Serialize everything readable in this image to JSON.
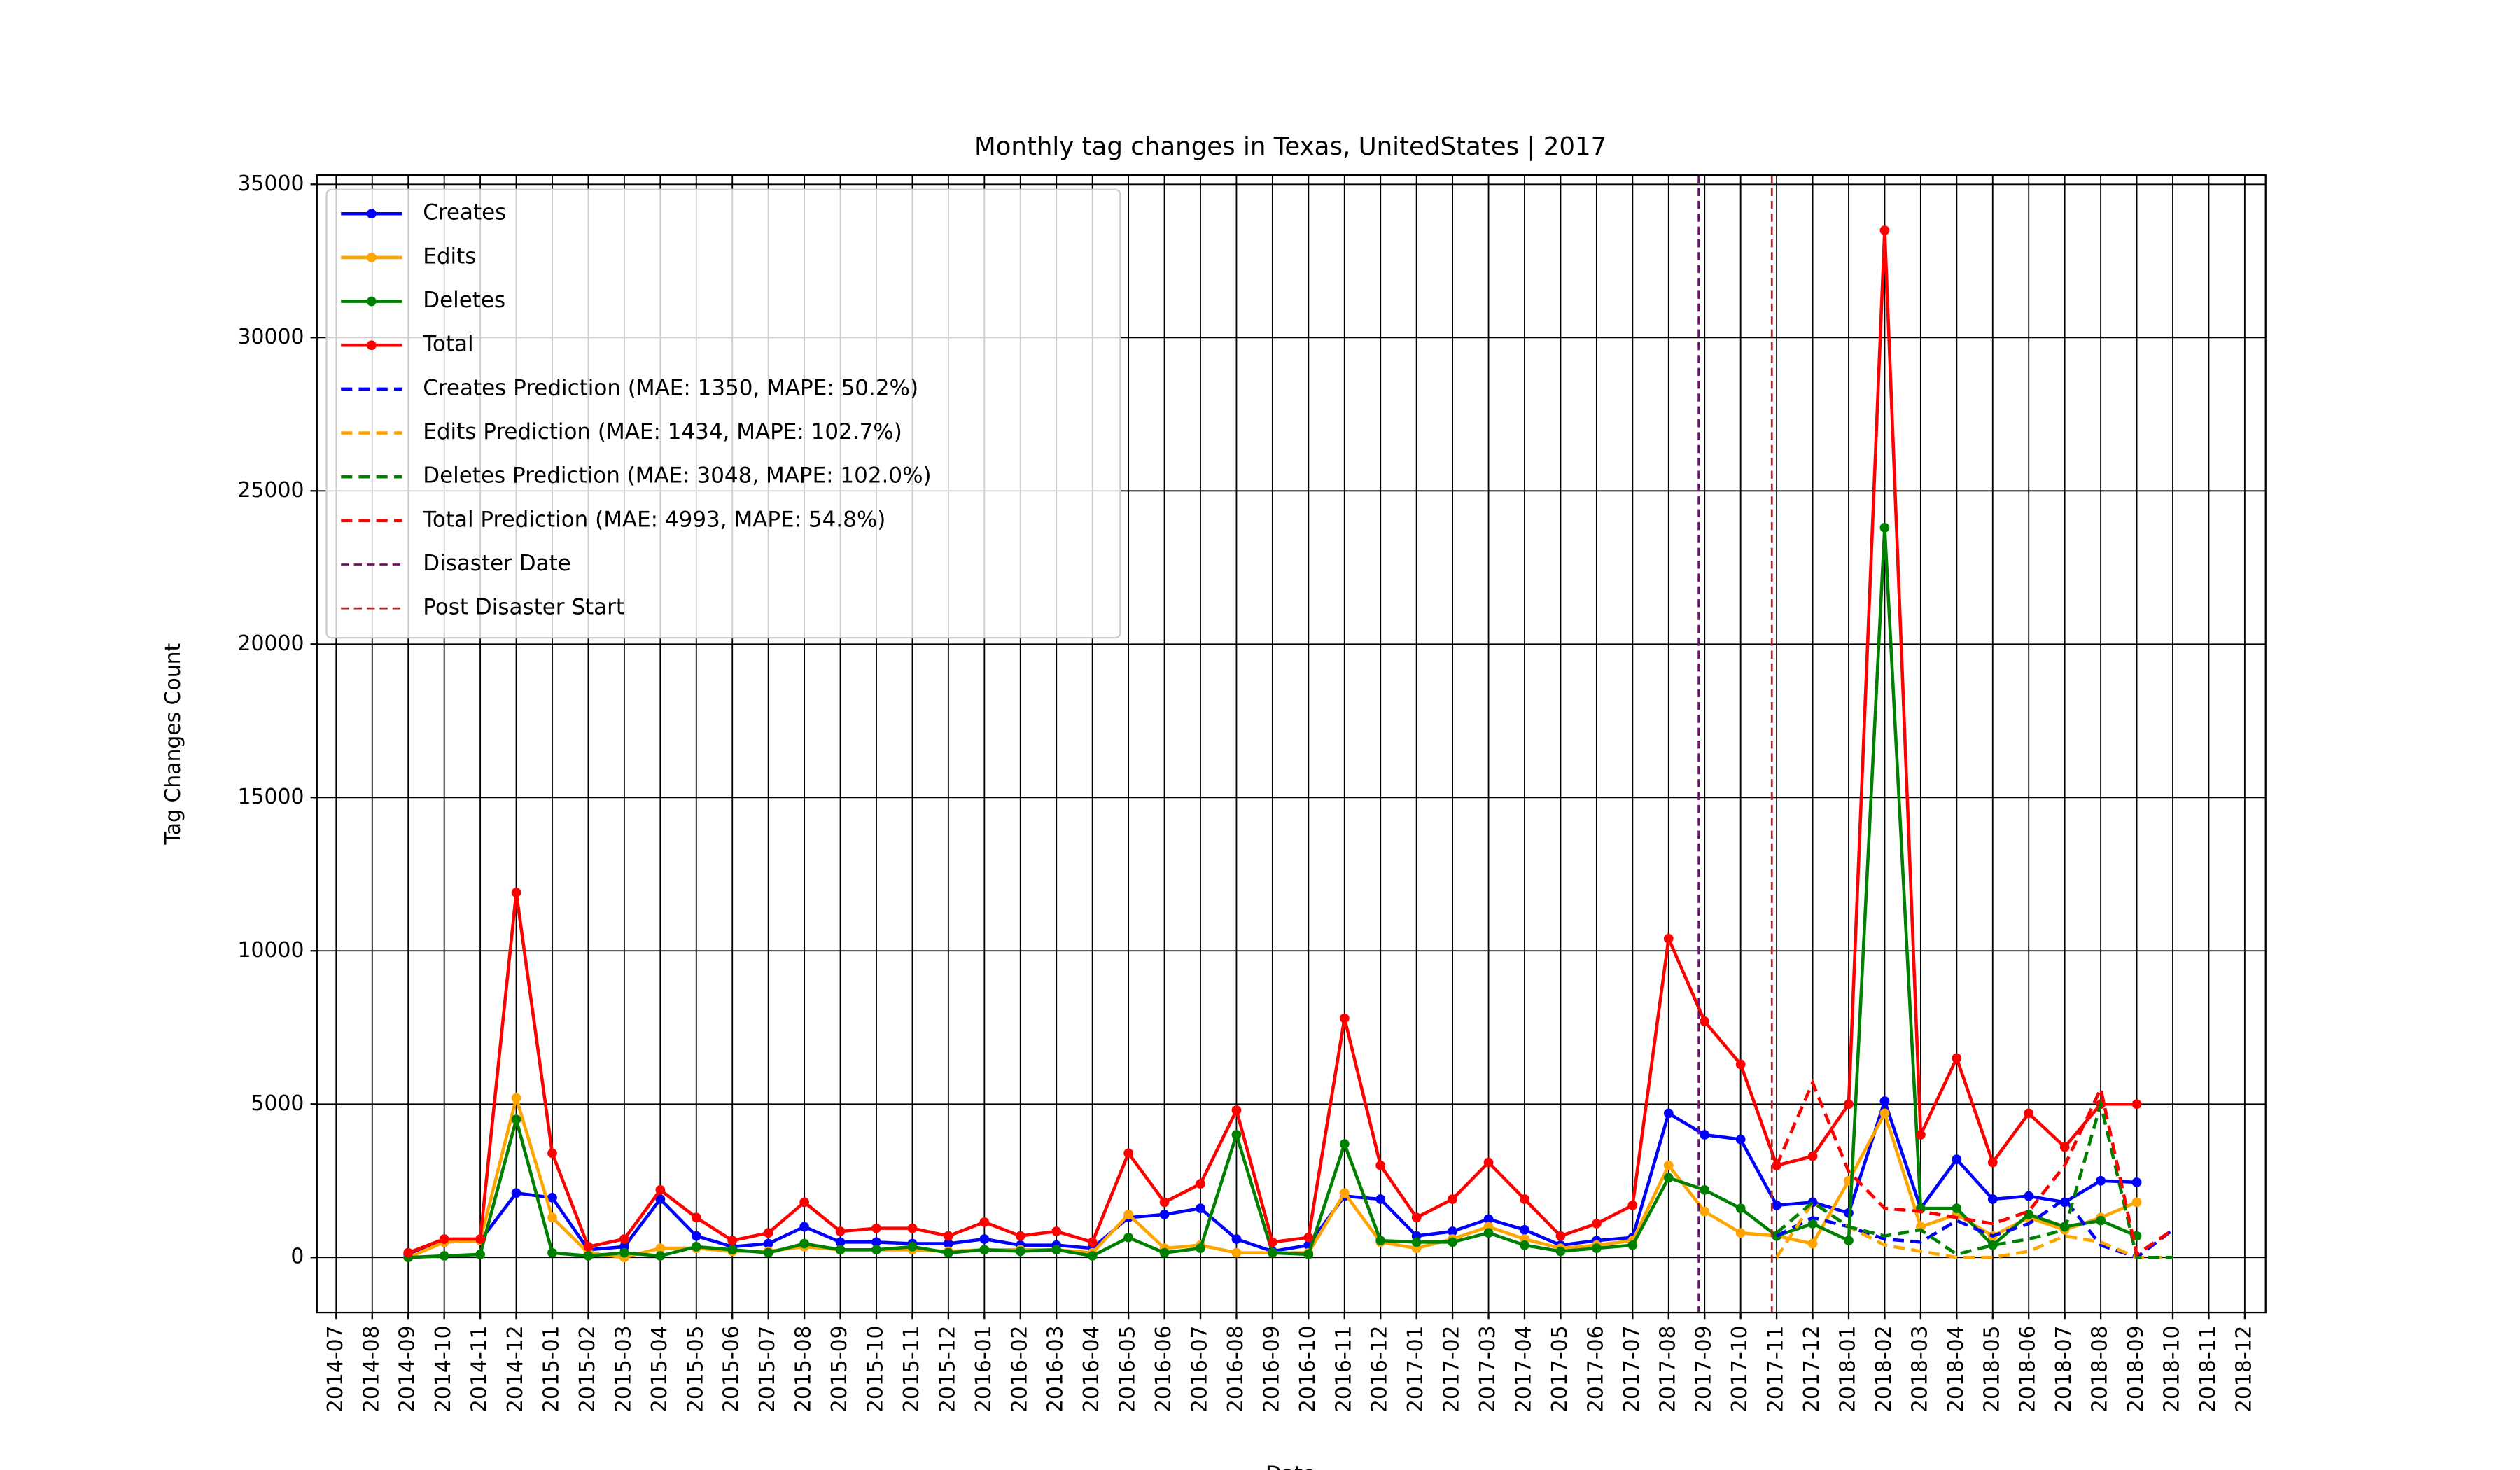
{
  "chart_data": {
    "type": "line",
    "title": "Monthly tag changes in Texas, UnitedStates | 2017",
    "x_label": "Date",
    "y_label": "Tag Changes Count",
    "grid": true,
    "legend": "upper left",
    "ylim": [
      -1800,
      35300
    ],
    "yticks": [
      0,
      5000,
      10000,
      15000,
      20000,
      25000,
      30000,
      35000
    ],
    "xticks": [
      "2014-07",
      "2014-08",
      "2014-09",
      "2014-10",
      "2014-11",
      "2014-12",
      "2015-01",
      "2015-02",
      "2015-03",
      "2015-04",
      "2015-05",
      "2015-06",
      "2015-07",
      "2015-08",
      "2015-09",
      "2015-10",
      "2015-11",
      "2015-12",
      "2016-01",
      "2016-02",
      "2016-03",
      "2016-04",
      "2016-05",
      "2016-06",
      "2016-07",
      "2016-08",
      "2016-09",
      "2016-10",
      "2016-11",
      "2016-12",
      "2017-01",
      "2017-02",
      "2017-03",
      "2017-04",
      "2017-05",
      "2017-06",
      "2017-07",
      "2017-08",
      "2017-09",
      "2017-10",
      "2017-11",
      "2017-12",
      "2018-01",
      "2018-02",
      "2018-03",
      "2018-04",
      "2018-05",
      "2018-06",
      "2018-07",
      "2018-08",
      "2018-09",
      "2018-10",
      "2018-11",
      "2018-12"
    ],
    "x": [
      "2014-09",
      "2014-10",
      "2014-11",
      "2014-12",
      "2015-01",
      "2015-02",
      "2015-03",
      "2015-04",
      "2015-05",
      "2015-06",
      "2015-07",
      "2015-08",
      "2015-09",
      "2015-10",
      "2015-11",
      "2015-12",
      "2016-01",
      "2016-02",
      "2016-03",
      "2016-04",
      "2016-05",
      "2016-06",
      "2016-07",
      "2016-08",
      "2016-09",
      "2016-10",
      "2016-11",
      "2016-12",
      "2017-01",
      "2017-02",
      "2017-03",
      "2017-04",
      "2017-05",
      "2017-06",
      "2017-07",
      "2017-08",
      "2017-09",
      "2017-10",
      "2017-11",
      "2017-12",
      "2018-01",
      "2018-02",
      "2018-03",
      "2018-04",
      "2018-05",
      "2018-06",
      "2018-07",
      "2018-08",
      "2018-09"
    ],
    "series": [
      {
        "name": "Creates",
        "color": "#0000ff",
        "markers": true,
        "dashed": false,
        "values": [
          100,
          500,
          550,
          2100,
          1950,
          250,
          350,
          1900,
          700,
          350,
          450,
          1000,
          500,
          500,
          450,
          450,
          600,
          400,
          400,
          300,
          1300,
          1400,
          1600,
          600,
          200,
          400,
          2000,
          1900,
          700,
          850,
          1250,
          900,
          400,
          550,
          650,
          4700,
          4000,
          3850,
          1700,
          1800,
          1450,
          5100,
          1600,
          3200,
          1900,
          2000,
          1800,
          2500,
          2450
        ]
      },
      {
        "name": "Edits",
        "color": "#ffa500",
        "markers": true,
        "dashed": false,
        "values": [
          0,
          500,
          550,
          5200,
          1300,
          150,
          0,
          300,
          300,
          200,
          200,
          350,
          250,
          250,
          250,
          200,
          250,
          250,
          250,
          150,
          1400,
          300,
          400,
          150,
          150,
          150,
          2100,
          500,
          300,
          600,
          1000,
          600,
          300,
          400,
          550,
          3000,
          1500,
          800,
          700,
          450,
          2500,
          4700,
          1000,
          1400,
          700,
          1300,
          900,
          1300,
          1800
        ]
      },
      {
        "name": "Deletes",
        "color": "#008000",
        "markers": true,
        "dashed": false,
        "values": [
          0,
          50,
          100,
          4500,
          150,
          50,
          150,
          50,
          350,
          250,
          150,
          450,
          250,
          250,
          350,
          150,
          250,
          200,
          250,
          50,
          650,
          150,
          300,
          4000,
          150,
          100,
          3700,
          550,
          500,
          500,
          800,
          400,
          200,
          300,
          400,
          2600,
          2200,
          1600,
          700,
          1100,
          550,
          23800,
          1600,
          1600,
          400,
          1400,
          1000,
          1200,
          700
        ]
      },
      {
        "name": "Total",
        "color": "#ff0000",
        "markers": true,
        "dashed": false,
        "values": [
          150,
          600,
          600,
          11900,
          3400,
          350,
          600,
          2200,
          1300,
          550,
          800,
          1800,
          850,
          950,
          950,
          700,
          1150,
          700,
          850,
          500,
          3400,
          1800,
          2400,
          4800,
          500,
          650,
          7800,
          3000,
          1300,
          1900,
          3100,
          1900,
          700,
          1100,
          1700,
          10400,
          7700,
          6300,
          3000,
          3300,
          5000,
          33500,
          4000,
          6500,
          3100,
          4700,
          3600,
          5000,
          5000
        ]
      },
      {
        "name": "Creates Prediction (MAE: 1350, MAPE: 50.2%)",
        "color": "#0000ff",
        "markers": false,
        "dashed": true,
        "x": [
          "2017-11",
          "2017-12",
          "2018-01",
          "2018-02",
          "2018-03",
          "2018-04",
          "2018-05",
          "2018-06",
          "2018-07",
          "2018-08",
          "2018-09",
          "2018-10"
        ],
        "values": [
          700,
          1300,
          1000,
          600,
          500,
          1200,
          700,
          1100,
          1900,
          400,
          0,
          900
        ]
      },
      {
        "name": "Edits Prediction (MAE: 1434, MAPE: 102.7%)",
        "color": "#ffa500",
        "markers": false,
        "dashed": true,
        "x": [
          "2017-11",
          "2017-12",
          "2018-01",
          "2018-02",
          "2018-03",
          "2018-04",
          "2018-05",
          "2018-06",
          "2018-07",
          "2018-08",
          "2018-09",
          "2018-10"
        ],
        "values": [
          0,
          1800,
          1000,
          400,
          200,
          0,
          0,
          200,
          700,
          500,
          0,
          0
        ]
      },
      {
        "name": "Deletes Prediction (MAE: 3048, MAPE: 102.0%)",
        "color": "#008000",
        "markers": false,
        "dashed": true,
        "x": [
          "2017-11",
          "2017-12",
          "2018-01",
          "2018-02",
          "2018-03",
          "2018-04",
          "2018-05",
          "2018-06",
          "2018-07",
          "2018-08",
          "2018-09",
          "2018-10"
        ],
        "values": [
          800,
          1800,
          1000,
          700,
          900,
          100,
          400,
          600,
          900,
          5000,
          0,
          0
        ]
      },
      {
        "name": "Total Prediction (MAE: 4993, MAPE: 54.8%)",
        "color": "#ff0000",
        "markers": false,
        "dashed": true,
        "x": [
          "2017-11",
          "2017-12",
          "2018-01",
          "2018-02",
          "2018-03",
          "2018-04",
          "2018-05",
          "2018-06",
          "2018-07",
          "2018-08",
          "2018-09",
          "2018-10"
        ],
        "values": [
          3000,
          5700,
          2800,
          1600,
          1500,
          1300,
          1100,
          1500,
          3000,
          5500,
          100,
          900
        ]
      }
    ],
    "vlines": [
      {
        "name": "Disaster Date",
        "x": "2017-08-26",
        "color": "#800080"
      },
      {
        "name": "Post Disaster Start",
        "x": "2017-10-27",
        "color": "#a52a2a"
      }
    ]
  }
}
